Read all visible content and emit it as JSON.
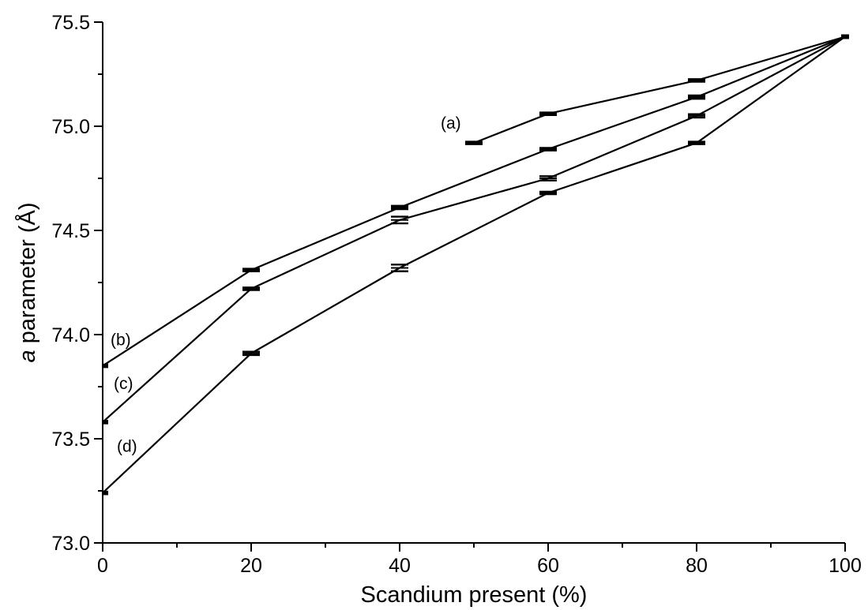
{
  "chart_data": {
    "type": "line",
    "title": "",
    "xlabel": "Scandium present (%)",
    "ylabel_italic": "a",
    "ylabel_rest": " parameter (Å)",
    "xlim": [
      0,
      100
    ],
    "ylim": [
      73.0,
      75.5
    ],
    "xticks": [
      0,
      20,
      40,
      60,
      80,
      100
    ],
    "xtick_labels": [
      "0",
      "20",
      "40",
      "60",
      "80",
      "100"
    ],
    "yticks": [
      73.0,
      73.5,
      74.0,
      74.5,
      75.0,
      75.5
    ],
    "ytick_labels": [
      "73.0",
      "73.5",
      "74.0",
      "74.5",
      "75.0",
      "75.5"
    ],
    "grid": false,
    "series": [
      {
        "name": "(a)",
        "x": [
          50,
          60,
          80,
          100
        ],
        "y": [
          74.92,
          75.06,
          75.22,
          75.43
        ],
        "err": [
          0.006,
          0.006,
          0.006,
          0.006
        ]
      },
      {
        "name": "(b)",
        "x": [
          0,
          20,
          40,
          60,
          80,
          100
        ],
        "y": [
          73.85,
          74.31,
          74.61,
          74.89,
          75.14,
          75.43
        ],
        "err": [
          0.006,
          0.006,
          0.008,
          0.006,
          0.008,
          0.006
        ]
      },
      {
        "name": "(c)",
        "x": [
          0,
          20,
          40,
          60,
          80,
          100
        ],
        "y": [
          73.58,
          74.22,
          74.55,
          74.75,
          75.05,
          75.43
        ],
        "err": [
          0.006,
          0.006,
          0.016,
          0.01,
          0.008,
          0.006
        ]
      },
      {
        "name": "(d)",
        "x": [
          0,
          20,
          40,
          60,
          80,
          100
        ],
        "y": [
          73.24,
          73.91,
          74.32,
          74.68,
          74.92,
          75.43
        ],
        "err": [
          0.006,
          0.008,
          0.016,
          0.006,
          0.006,
          0.006
        ]
      }
    ]
  }
}
